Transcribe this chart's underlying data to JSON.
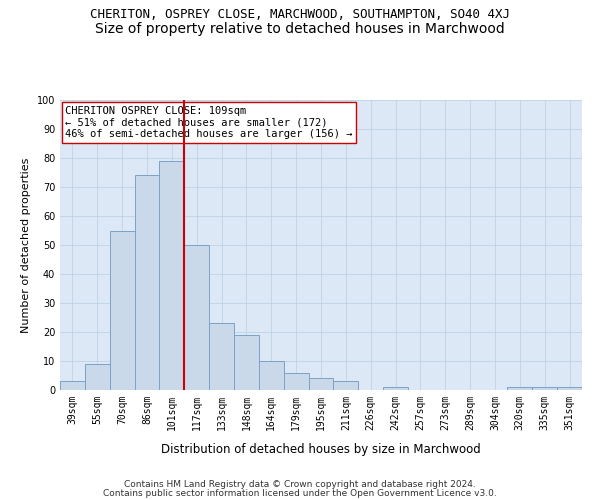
{
  "title1": "CHERITON, OSPREY CLOSE, MARCHWOOD, SOUTHAMPTON, SO40 4XJ",
  "title2": "Size of property relative to detached houses in Marchwood",
  "xlabel": "Distribution of detached houses by size in Marchwood",
  "ylabel": "Number of detached properties",
  "categories": [
    "39sqm",
    "55sqm",
    "70sqm",
    "86sqm",
    "101sqm",
    "117sqm",
    "133sqm",
    "148sqm",
    "164sqm",
    "179sqm",
    "195sqm",
    "211sqm",
    "226sqm",
    "242sqm",
    "257sqm",
    "273sqm",
    "289sqm",
    "304sqm",
    "320sqm",
    "335sqm",
    "351sqm"
  ],
  "values": [
    3,
    9,
    55,
    74,
    79,
    50,
    23,
    19,
    10,
    6,
    4,
    3,
    0,
    1,
    0,
    0,
    0,
    0,
    1,
    1,
    1
  ],
  "bar_color": "#c9d9ea",
  "bar_edge_color": "#7ba3c5",
  "vline_color": "#cc0000",
  "annotation_line1": "CHERITON OSPREY CLOSE: 109sqm",
  "annotation_line2": "← 51% of detached houses are smaller (172)",
  "annotation_line3": "46% of semi-detached houses are larger (156) →",
  "annotation_box_color": "#ffffff",
  "annotation_box_edge": "#cc0000",
  "ylim": [
    0,
    100
  ],
  "yticks": [
    0,
    10,
    20,
    30,
    40,
    50,
    60,
    70,
    80,
    90,
    100
  ],
  "grid_color": "#b8cfe0",
  "background_color": "#dce8f5",
  "footer1": "Contains HM Land Registry data © Crown copyright and database right 2024.",
  "footer2": "Contains public sector information licensed under the Open Government Licence v3.0.",
  "title1_fontsize": 9,
  "title2_fontsize": 10,
  "xlabel_fontsize": 8.5,
  "ylabel_fontsize": 8,
  "tick_fontsize": 7,
  "annotation_fontsize": 7.5,
  "footer_fontsize": 6.5
}
